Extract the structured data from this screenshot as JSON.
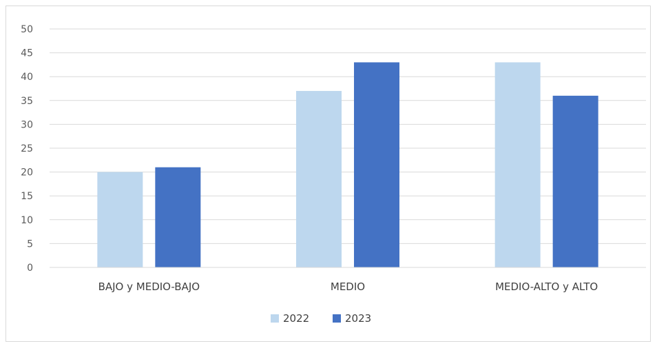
{
  "chart_data": {
    "type": "bar",
    "categories": [
      "BAJO y MEDIO-BAJO",
      "MEDIO",
      "MEDIO-ALTO y ALTO"
    ],
    "series": [
      {
        "name": "2022",
        "values": [
          20,
          37,
          43
        ],
        "color": "#bdd7ee"
      },
      {
        "name": "2023",
        "values": [
          21,
          43,
          36
        ],
        "color": "#4472c4"
      }
    ],
    "ylim": [
      0,
      50
    ],
    "yticks": [
      0,
      5,
      10,
      15,
      20,
      25,
      30,
      35,
      40,
      45,
      50
    ],
    "grid": true,
    "gridline_color": "#d9d9d9",
    "legend_position": "bottom"
  }
}
